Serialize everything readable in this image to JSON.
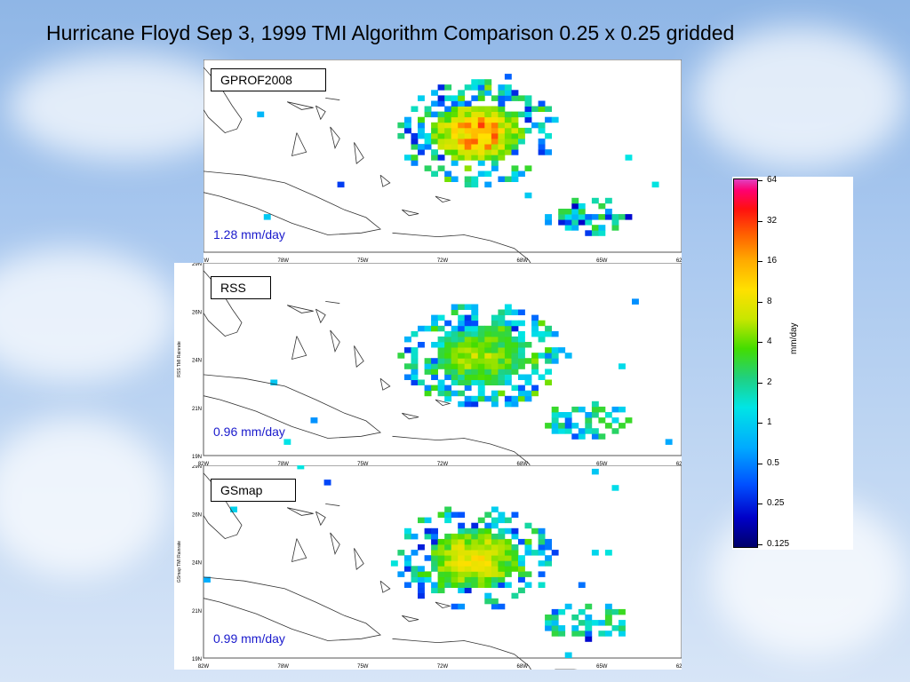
{
  "slide": {
    "title": "Hurricane Floyd Sep 3, 1999 TMI Algorithm Comparison  0.25 x 0.25 gridded"
  },
  "colors": {
    "mean_text": "#1a1acc",
    "coast": "#333333"
  },
  "chart_data": [
    {
      "type": "heatmap",
      "label": "GPROF2008",
      "mean_text": "1.28 mm/day",
      "xlim": [
        -82,
        -62
      ],
      "ylim": [
        19,
        29
      ],
      "x_ticks": [
        "82W",
        "78W",
        "75W",
        "72W",
        "68W",
        "65W",
        "62W"
      ],
      "y_ticks": [],
      "y_axis_label": "",
      "storm_center": {
        "lon": -70.7,
        "lat": 25.0
      },
      "core_mm_day": 12
    },
    {
      "type": "heatmap",
      "label": "RSS",
      "mean_text": "0.96 mm/day",
      "xlim": [
        -82,
        -62
      ],
      "ylim": [
        19,
        29
      ],
      "x_ticks": [
        "82W",
        "78W",
        "75W",
        "72W",
        "68W",
        "65W",
        "62W"
      ],
      "y_ticks": [
        "29N",
        "26N",
        "24N",
        "21N",
        "19N"
      ],
      "y_axis_label": "RSS TMI Rainrate",
      "storm_center": {
        "lon": -70.5,
        "lat": 24.0
      },
      "core_mm_day": 6
    },
    {
      "type": "heatmap",
      "label": "GSmap",
      "mean_text": "0.99 mm/day",
      "xlim": [
        -82,
        -62
      ],
      "ylim": [
        19,
        29
      ],
      "x_ticks": [
        "82W",
        "78W",
        "75W",
        "72W",
        "68W",
        "65W",
        "62W"
      ],
      "y_ticks": [
        "29N",
        "26N",
        "24N",
        "21N",
        "19N"
      ],
      "y_axis_label": "GSmap TMI Rainrate",
      "storm_center": {
        "lon": -70.8,
        "lat": 24.0
      },
      "core_mm_day": 9
    }
  ],
  "colorbar": {
    "unit": "mm/day",
    "ticks": [
      "64",
      "32",
      "16",
      "8",
      "4",
      "2",
      "1",
      "0.5",
      "0.25",
      "0.125"
    ]
  }
}
